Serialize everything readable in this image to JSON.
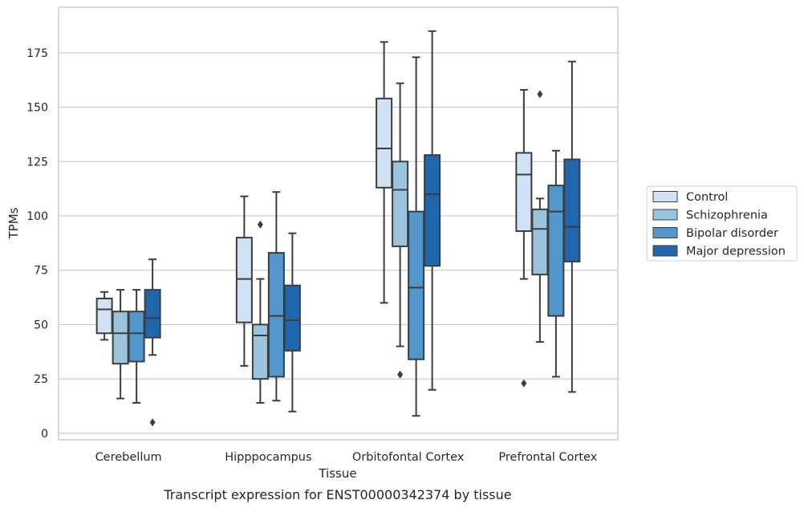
{
  "chart_data": {
    "type": "box",
    "caption": "Transcript expression for ENST00000342374 by tissue",
    "xlabel": "Tissue",
    "ylabel": "TPMs",
    "ylim": [
      -3,
      196
    ],
    "yticks": [
      0,
      25,
      50,
      75,
      100,
      125,
      150,
      175
    ],
    "grid": "horizontal",
    "legend_position": "right",
    "categories": [
      "Cerebellum",
      "Hipppocampus",
      "Orbitofontal Cortex",
      "Prefrontal Cortex"
    ],
    "series": [
      {
        "name": "Control",
        "color": "#d0e2f3",
        "boxes": [
          {
            "whisker_low": 43,
            "q1": 46,
            "median": 57,
            "q3": 62,
            "whisker_high": 65,
            "outliers": []
          },
          {
            "whisker_low": 31,
            "q1": 51,
            "median": 71,
            "q3": 90,
            "whisker_high": 109,
            "outliers": []
          },
          {
            "whisker_low": 60,
            "q1": 113,
            "median": 131,
            "q3": 154,
            "whisker_high": 180,
            "outliers": []
          },
          {
            "whisker_low": 71,
            "q1": 93,
            "median": 119,
            "q3": 129,
            "whisker_high": 158,
            "outliers": [
              23
            ]
          }
        ]
      },
      {
        "name": "Schizophrenia",
        "color": "#9ac3de",
        "boxes": [
          {
            "whisker_low": 16,
            "q1": 32,
            "median": 46,
            "q3": 56,
            "whisker_high": 66,
            "outliers": []
          },
          {
            "whisker_low": 14,
            "q1": 25,
            "median": 45,
            "q3": 50,
            "whisker_high": 71,
            "outliers": [
              96
            ]
          },
          {
            "whisker_low": 40,
            "q1": 86,
            "median": 112,
            "q3": 125,
            "whisker_high": 161,
            "outliers": [
              27
            ]
          },
          {
            "whisker_low": 42,
            "q1": 73,
            "median": 94,
            "q3": 103,
            "whisker_high": 108,
            "outliers": [
              156
            ]
          }
        ]
      },
      {
        "name": "Bipolar disorder",
        "color": "#5197c9",
        "boxes": [
          {
            "whisker_low": 14,
            "q1": 33,
            "median": 46,
            "q3": 56,
            "whisker_high": 66,
            "outliers": []
          },
          {
            "whisker_low": 15,
            "q1": 26,
            "median": 54,
            "q3": 83,
            "whisker_high": 111,
            "outliers": []
          },
          {
            "whisker_low": 8,
            "q1": 34,
            "median": 67,
            "q3": 102,
            "whisker_high": 173,
            "outliers": []
          },
          {
            "whisker_low": 26,
            "q1": 54,
            "median": 102,
            "q3": 114,
            "whisker_high": 130,
            "outliers": []
          }
        ]
      },
      {
        "name": "Major depression",
        "color": "#2166ac",
        "boxes": [
          {
            "whisker_low": 36,
            "q1": 44,
            "median": 53,
            "q3": 66,
            "whisker_high": 80,
            "outliers": [
              5
            ]
          },
          {
            "whisker_low": 10,
            "q1": 38,
            "median": 52,
            "q3": 68,
            "whisker_high": 92,
            "outliers": []
          },
          {
            "whisker_low": 20,
            "q1": 77,
            "median": 110,
            "q3": 128,
            "whisker_high": 185,
            "outliers": []
          },
          {
            "whisker_low": 19,
            "q1": 79,
            "median": 95,
            "q3": 126,
            "whisker_high": 171,
            "outliers": []
          }
        ]
      }
    ]
  }
}
